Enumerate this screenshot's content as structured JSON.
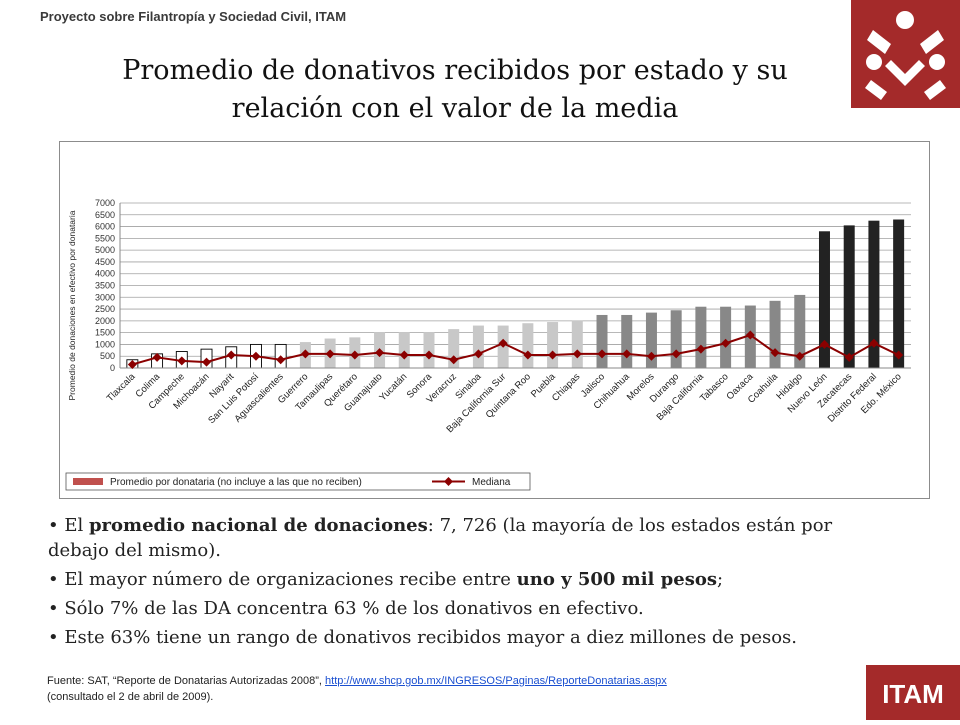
{
  "header": {
    "project": "Proyecto sobre Filantropía y Sociedad Civil, ITAM",
    "title_line1": "Promedio de donativos recibidos por estado y su",
    "title_line2": "relación con el valor de la media"
  },
  "colors": {
    "brand_red": "#a42a2a",
    "white_bar": "#ffffff",
    "light_gray_bar": "#c8c8c8",
    "mid_gray_bar": "#888888",
    "black_bar": "#222222",
    "median_line": "#8b0000"
  },
  "chart_data": {
    "type": "bar",
    "ylabel": "Promedio de donaciones en efectivo por donataria",
    "ylim": [
      0,
      7000
    ],
    "yticks": [
      0,
      500,
      1000,
      1500,
      2000,
      2500,
      3000,
      3500,
      4000,
      4500,
      5000,
      5500,
      6000,
      6500,
      7000
    ],
    "grid": true,
    "legend_position": "bottom",
    "categories": [
      "Tlaxcala",
      "Colima",
      "Campeche",
      "Michoacán",
      "Nayarit",
      "San Luis Potosí",
      "Aguascalientes",
      "Guerrero",
      "Tamaulipas",
      "Querétaro",
      "Guanajuato",
      "Yucatán",
      "Sonora",
      "Veracruz",
      "Sinaloa",
      "Baja California Sur",
      "Quintana Roo",
      "Puebla",
      "Chiapas",
      "Jalisco",
      "Chihuahua",
      "Morelos",
      "Durango",
      "Baja California",
      "Tabasco",
      "Oaxaca",
      "Coahuila",
      "Hidalgo",
      "Nuevo León",
      "Zacatecas",
      "Distrito Federal",
      "Edo. México"
    ],
    "bar_groups": [
      "white",
      "white",
      "white",
      "white",
      "white",
      "white",
      "white",
      "light",
      "light",
      "light",
      "light",
      "light",
      "light",
      "light",
      "light",
      "light",
      "light",
      "light",
      "light",
      "mid",
      "mid",
      "mid",
      "mid",
      "mid",
      "mid",
      "mid",
      "mid",
      "mid",
      "black",
      "black",
      "black",
      "black"
    ],
    "series": [
      {
        "name": "Promedio por donataria (no incluye a las que no reciben)",
        "type": "bar",
        "values": [
          350,
          600,
          700,
          800,
          900,
          1000,
          1000,
          1100,
          1250,
          1300,
          1500,
          1500,
          1500,
          1650,
          1800,
          1800,
          1900,
          1950,
          2000,
          2250,
          2250,
          2350,
          2450,
          2600,
          2600,
          2650,
          2850,
          3100,
          5800,
          6050,
          6250,
          6300
        ]
      },
      {
        "name": "Mediana",
        "type": "line",
        "values": [
          150,
          450,
          300,
          250,
          550,
          500,
          350,
          600,
          600,
          550,
          650,
          550,
          550,
          350,
          600,
          1050,
          550,
          550,
          600,
          600,
          600,
          500,
          600,
          800,
          1050,
          1400,
          650,
          500,
          1000,
          450,
          1050,
          550
        ]
      }
    ]
  },
  "bullets": [
    {
      "pre": "El ",
      "bold": "promedio nacional de donaciones",
      "post": ": 7, 726 (la mayoría de los estados están por debajo del mismo)."
    },
    {
      "pre": "El mayor número de organizaciones recibe entre ",
      "bold": "uno y 500 mil pesos",
      "post": ";"
    },
    {
      "pre": "Sólo 7% de las DA concentra 63 % de los donativos en efectivo.",
      "bold": "",
      "post": ""
    },
    {
      "pre": "Este 63% tiene un rango de donativos recibidos mayor a diez millones de pesos.",
      "bold": "",
      "post": ""
    }
  ],
  "source": {
    "prefix": "Fuente: SAT, “Reporte de Donatarias Autorizadas 2008”, ",
    "link": "http://www.shcp.gob.mx/INGRESOS/Paginas/ReporteDonatarias.aspx",
    "suffix": "(consultado el 2 de abril de 2009)."
  },
  "itam_logo_text": "ITAM"
}
